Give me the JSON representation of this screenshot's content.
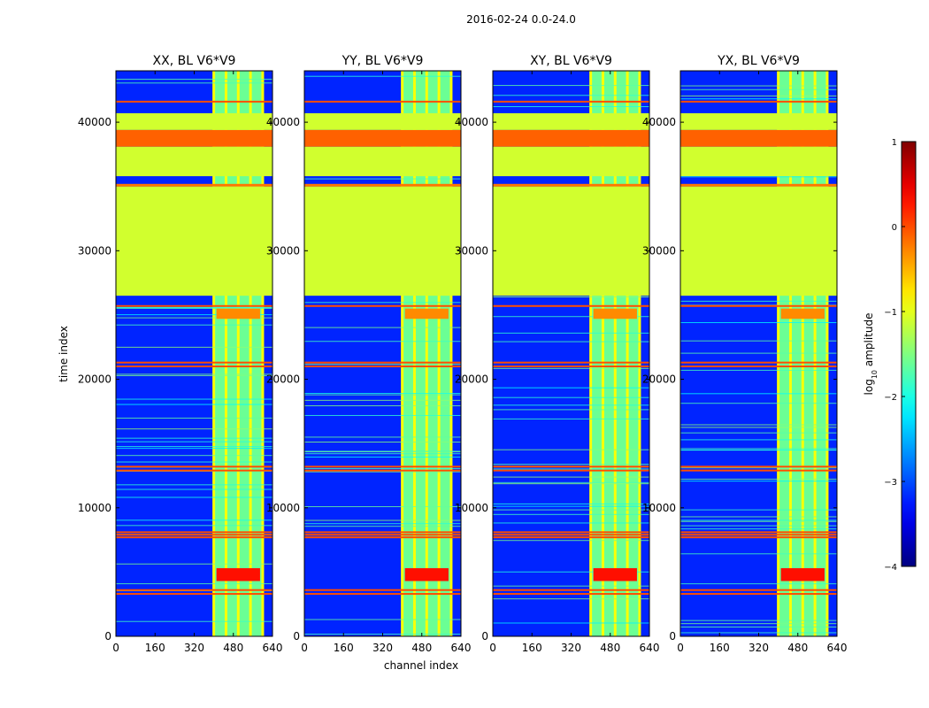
{
  "figure": {
    "suptitle": "2016-02-24 0.0-24.0",
    "xlabel": "channel index",
    "ylabel": "time index"
  },
  "colorbar": {
    "label_prefix": "log",
    "label_sub": "10",
    "label_suffix": " amplitude",
    "range": [
      -4,
      1
    ],
    "ticks": [
      1,
      0,
      -1,
      -2,
      -3,
      -4
    ],
    "tick_labels": [
      "1",
      "0",
      "−1",
      "−2",
      "−3",
      "−4"
    ],
    "colormap": "jet"
  },
  "chart_data": {
    "type": "heatmap",
    "x_range": [
      0,
      640
    ],
    "y_range": [
      0,
      44000
    ],
    "x_ticks": [
      0,
      160,
      320,
      480,
      640
    ],
    "y_ticks": [
      0,
      10000,
      20000,
      30000,
      40000
    ],
    "x_tick_labels": [
      "0",
      "160",
      "320",
      "480",
      "640"
    ],
    "y_tick_labels": [
      "0",
      "10000",
      "20000",
      "30000",
      "40000"
    ],
    "panels": [
      {
        "title": "XX, BL V6*V9",
        "active_channels": [
          400,
          600
        ]
      },
      {
        "title": "YY, BL V6*V9",
        "active_channels": [
          400,
          600
        ]
      },
      {
        "title": "XY, BL V6*V9",
        "active_channels": [
          400,
          600
        ]
      },
      {
        "title": "YX, BL V6*V9",
        "active_channels": [
          400,
          600
        ]
      }
    ],
    "flagged_blocks": [
      {
        "t0": 26500,
        "t1": 35000,
        "value": -1.1
      },
      {
        "t0": 35000,
        "t1": 35200,
        "value": -0.2
      },
      {
        "t0": 35800,
        "t1": 38100,
        "value": -1.1
      },
      {
        "t0": 38100,
        "t1": 39400,
        "value": -0.1
      },
      {
        "t0": 39400,
        "t1": 40700,
        "value": -1.1
      }
    ],
    "bright_bursts": [
      {
        "t0": 4300,
        "t1": 5300,
        "value": 0.3
      },
      {
        "t0": 24700,
        "t1": 25500,
        "value": -0.3
      }
    ],
    "horizontal_stripes": [
      3300,
      3600,
      7700,
      7900,
      8100,
      12900,
      13200,
      21000,
      21300,
      25700,
      41600
    ]
  }
}
